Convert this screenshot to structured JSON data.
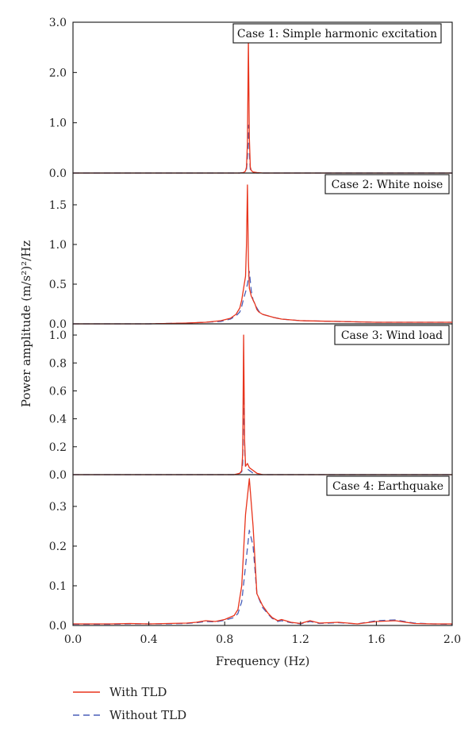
{
  "chart_data": {
    "type": "line",
    "xlabel": "Frequency (Hz)",
    "ylabel": "Power amplitude (m/s²)²/Hz",
    "xlim": [
      0.0,
      2.0
    ],
    "xticks": [
      "0.0",
      "0.4",
      "0.8",
      "1.2",
      "1.6",
      "2.0"
    ],
    "legend": {
      "placement": "bottom-left",
      "entries": [
        {
          "name": "With TLD",
          "color": "#e8341c",
          "style": "solid"
        },
        {
          "name": "Without TLD",
          "color": "#4a5fb8",
          "style": "dashed"
        }
      ]
    },
    "panels": [
      {
        "label": "Case 1: Simple harmonic excitation",
        "ylim": [
          0,
          3.0
        ],
        "yticks": [
          0.0,
          1.0,
          2.0,
          3.0
        ],
        "ytick_labels": [
          "0.0",
          "1.0",
          "2.0",
          "3.0"
        ],
        "series": [
          {
            "name": "With TLD",
            "x": [
              0.0,
              0.88,
              0.9,
              0.91,
              0.915,
              0.92,
              0.925,
              0.93,
              0.935,
              0.94,
              0.95,
              0.97,
              1.0,
              2.0
            ],
            "y": [
              0.0,
              0.0,
              0.01,
              0.04,
              0.12,
              0.6,
              2.65,
              0.7,
              0.12,
              0.05,
              0.02,
              0.01,
              0.0,
              0.0
            ]
          },
          {
            "name": "Without TLD",
            "x": [
              0.0,
              0.88,
              0.9,
              0.91,
              0.915,
              0.92,
              0.925,
              0.93,
              0.935,
              0.94,
              0.95,
              0.97,
              1.0,
              2.0
            ],
            "y": [
              0.0,
              0.0,
              0.01,
              0.02,
              0.06,
              0.3,
              0.95,
              0.4,
              0.07,
              0.03,
              0.01,
              0.0,
              0.0,
              0.0
            ]
          }
        ]
      },
      {
        "label": "Case 2: White noise",
        "ylim": [
          0,
          1.9
        ],
        "yticks": [
          0.0,
          0.5,
          1.0,
          1.5
        ],
        "ytick_labels": [
          "0.0",
          "0.5",
          "1.0",
          "1.5"
        ],
        "series": [
          {
            "name": "With TLD",
            "x": [
              0.0,
              0.4,
              0.6,
              0.7,
              0.78,
              0.83,
              0.86,
              0.88,
              0.89,
              0.9,
              0.91,
              0.915,
              0.92,
              0.925,
              0.93,
              0.94,
              0.95,
              0.96,
              0.97,
              0.98,
              1.0,
              1.03,
              1.06,
              1.1,
              1.2,
              1.4,
              1.6,
              1.8,
              2.0
            ],
            "y": [
              0.0,
              0.0,
              0.01,
              0.02,
              0.04,
              0.07,
              0.12,
              0.2,
              0.3,
              0.45,
              0.6,
              1.0,
              1.75,
              0.8,
              0.45,
              0.35,
              0.3,
              0.25,
              0.18,
              0.15,
              0.12,
              0.1,
              0.08,
              0.06,
              0.04,
              0.03,
              0.02,
              0.02,
              0.02
            ]
          },
          {
            "name": "Without TLD",
            "x": [
              0.0,
              0.4,
              0.6,
              0.7,
              0.78,
              0.83,
              0.86,
              0.88,
              0.89,
              0.9,
              0.91,
              0.92,
              0.93,
              0.94,
              0.95,
              0.96,
              0.97,
              0.98,
              1.0,
              1.03,
              1.06,
              1.1,
              1.2,
              1.4,
              1.6,
              1.8,
              2.0
            ],
            "y": [
              0.0,
              0.0,
              0.01,
              0.02,
              0.03,
              0.06,
              0.1,
              0.15,
              0.22,
              0.32,
              0.4,
              0.5,
              0.66,
              0.42,
              0.3,
              0.25,
              0.2,
              0.16,
              0.12,
              0.1,
              0.08,
              0.06,
              0.04,
              0.03,
              0.02,
              0.02,
              0.02
            ]
          }
        ]
      },
      {
        "label": "Case 3: Wind load",
        "ylim": [
          0,
          1.08
        ],
        "yticks": [
          0.0,
          0.2,
          0.4,
          0.6,
          0.8,
          1.0
        ],
        "ytick_labels": [
          "0.0",
          "0.2",
          "0.4",
          "0.6",
          "0.8",
          "1.0"
        ],
        "series": [
          {
            "name": "With TLD",
            "x": [
              0.0,
              0.85,
              0.88,
              0.89,
              0.895,
              0.9,
              0.905,
              0.91,
              0.92,
              0.93,
              0.95,
              0.97,
              1.0,
              2.0
            ],
            "y": [
              0.0,
              0.0,
              0.01,
              0.03,
              0.15,
              1.0,
              0.25,
              0.06,
              0.08,
              0.05,
              0.03,
              0.01,
              0.0,
              0.0
            ]
          },
          {
            "name": "Without TLD",
            "x": [
              0.0,
              0.85,
              0.88,
              0.89,
              0.895,
              0.9,
              0.905,
              0.91,
              0.92,
              0.93,
              0.95,
              0.97,
              1.0,
              2.0
            ],
            "y": [
              0.0,
              0.0,
              0.01,
              0.02,
              0.08,
              0.6,
              0.2,
              0.05,
              0.04,
              0.03,
              0.01,
              0.0,
              0.0,
              0.0
            ]
          }
        ]
      },
      {
        "label": "Case 4: Earthquake",
        "ylim": [
          0,
          0.38
        ],
        "yticks": [
          0.0,
          0.1,
          0.2,
          0.3
        ],
        "ytick_labels": [
          "0.0",
          "0.1",
          "0.2",
          "0.3"
        ],
        "series": [
          {
            "name": "With TLD",
            "x": [
              0.0,
              0.2,
              0.3,
              0.4,
              0.5,
              0.6,
              0.65,
              0.7,
              0.75,
              0.8,
              0.85,
              0.87,
              0.89,
              0.91,
              0.93,
              0.95,
              0.97,
              1.0,
              1.03,
              1.05,
              1.08,
              1.1,
              1.15,
              1.2,
              1.25,
              1.3,
              1.4,
              1.5,
              1.6,
              1.7,
              1.8,
              1.9,
              2.0
            ],
            "y": [
              0.004,
              0.004,
              0.005,
              0.004,
              0.005,
              0.006,
              0.008,
              0.012,
              0.01,
              0.015,
              0.025,
              0.04,
              0.1,
              0.28,
              0.37,
              0.25,
              0.08,
              0.05,
              0.03,
              0.02,
              0.012,
              0.015,
              0.008,
              0.005,
              0.012,
              0.006,
              0.008,
              0.004,
              0.01,
              0.012,
              0.005,
              0.004,
              0.004
            ]
          },
          {
            "name": "Without TLD",
            "x": [
              0.0,
              0.2,
              0.3,
              0.4,
              0.5,
              0.6,
              0.65,
              0.7,
              0.75,
              0.8,
              0.85,
              0.87,
              0.89,
              0.91,
              0.93,
              0.95,
              0.97,
              1.0,
              1.03,
              1.05,
              1.08,
              1.1,
              1.15,
              1.2,
              1.25,
              1.3,
              1.4,
              1.5,
              1.6,
              1.7,
              1.8,
              1.9,
              2.0
            ],
            "y": [
              0.003,
              0.003,
              0.004,
              0.004,
              0.004,
              0.005,
              0.007,
              0.01,
              0.009,
              0.013,
              0.02,
              0.03,
              0.06,
              0.15,
              0.24,
              0.2,
              0.08,
              0.045,
              0.028,
              0.018,
              0.01,
              0.012,
              0.007,
              0.004,
              0.01,
              0.005,
              0.007,
              0.004,
              0.012,
              0.014,
              0.006,
              0.004,
              0.003
            ]
          }
        ]
      }
    ]
  }
}
